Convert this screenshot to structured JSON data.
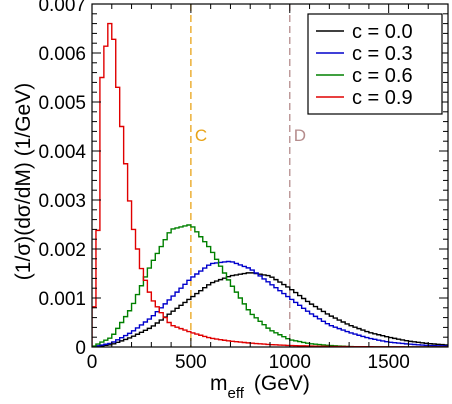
{
  "chart_data": {
    "type": "line",
    "xlabel_main": "m",
    "xlabel_sub": "eff",
    "xlabel_unit": "(GeV)",
    "ylabel": "(1/σ)(dσ/dM)  (1/GeV)",
    "xlim": [
      0,
      1800
    ],
    "ylim": [
      0,
      0.007
    ],
    "x_ticks": [
      0,
      500,
      1000,
      1500
    ],
    "y_ticks": [
      0,
      0.001,
      0.002,
      0.003,
      0.004,
      0.005,
      0.006,
      0.007
    ],
    "x_tick_labels": [
      "0",
      "500",
      "1000",
      "1500"
    ],
    "y_tick_labels": [
      "0",
      "0.001",
      "0.002",
      "0.003",
      "0.004",
      "0.005",
      "0.006",
      "0.007"
    ],
    "grid": false,
    "legend_position": "top-right",
    "markers": [
      {
        "label": "C",
        "x": 500,
        "color": "#e8a317"
      },
      {
        "label": "D",
        "x": 1000,
        "color": "#b58c8c"
      }
    ],
    "series": [
      {
        "name": "c = 0.0",
        "color": "#000000",
        "x": [
          0,
          100,
          200,
          300,
          400,
          500,
          600,
          700,
          800,
          900,
          1000,
          1100,
          1200,
          1300,
          1400,
          1500,
          1600,
          1700,
          1800
        ],
        "y": [
          0,
          5e-05,
          0.0002,
          0.0004,
          0.0007,
          0.001,
          0.0013,
          0.00145,
          0.00152,
          0.00145,
          0.0012,
          0.0009,
          0.00065,
          0.00045,
          0.0003,
          0.0002,
          0.00012,
          7e-05,
          4e-05
        ]
      },
      {
        "name": "c = 0.3",
        "color": "#0000cc",
        "x": [
          0,
          100,
          200,
          300,
          400,
          500,
          600,
          700,
          800,
          900,
          1000,
          1100,
          1200,
          1300,
          1400,
          1500,
          1600,
          1700,
          1800
        ],
        "y": [
          0,
          8e-05,
          0.0003,
          0.0006,
          0.001,
          0.0014,
          0.0017,
          0.00175,
          0.0016,
          0.0013,
          0.001,
          0.0007,
          0.00045,
          0.0003,
          0.00018,
          0.0001,
          6e-05,
          3e-05,
          2e-05
        ]
      },
      {
        "name": "c = 0.6",
        "color": "#008000",
        "x": [
          0,
          100,
          200,
          300,
          400,
          500,
          600,
          700,
          800,
          900,
          1000,
          1100,
          1200,
          1300,
          1400
        ],
        "y": [
          0,
          0.0002,
          0.0008,
          0.0017,
          0.0024,
          0.0025,
          0.002,
          0.0013,
          0.0007,
          0.00035,
          0.00015,
          7e-05,
          3e-05,
          1e-05,
          0
        ]
      },
      {
        "name": "c = 0.9",
        "color": "#e00000",
        "x": [
          0,
          25,
          50,
          75,
          100,
          125,
          150,
          200,
          250,
          300,
          350,
          400,
          500,
          600,
          700,
          800,
          900,
          1000,
          1100,
          1200,
          1400,
          1600,
          1800
        ],
        "y": [
          0.0003,
          0.0016,
          0.0055,
          0.0063,
          0.0068,
          0.0055,
          0.0045,
          0.0026,
          0.0016,
          0.001,
          0.0007,
          0.00045,
          0.0003,
          0.00018,
          0.00012,
          8e-05,
          5e-05,
          3e-05,
          2e-05,
          1e-05,
          5e-06,
          2e-06,
          0
        ]
      }
    ]
  }
}
